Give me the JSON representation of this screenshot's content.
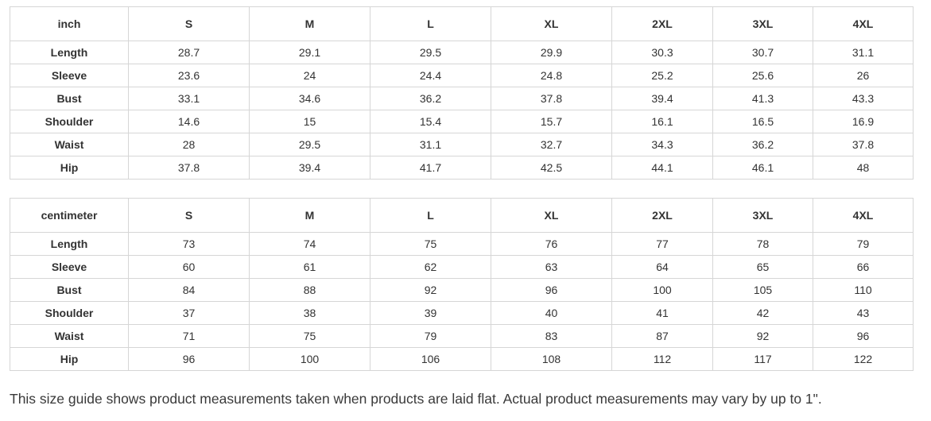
{
  "inch_table": {
    "unit_label": "inch",
    "sizes": [
      "S",
      "M",
      "L",
      "XL",
      "2XL",
      "3XL",
      "4XL"
    ],
    "rows": [
      {
        "label": "Length",
        "values": [
          "28.7",
          "29.1",
          "29.5",
          "29.9",
          "30.3",
          "30.7",
          "31.1"
        ]
      },
      {
        "label": "Sleeve",
        "values": [
          "23.6",
          "24",
          "24.4",
          "24.8",
          "25.2",
          "25.6",
          "26"
        ]
      },
      {
        "label": "Bust",
        "values": [
          "33.1",
          "34.6",
          "36.2",
          "37.8",
          "39.4",
          "41.3",
          "43.3"
        ]
      },
      {
        "label": "Shoulder",
        "values": [
          "14.6",
          "15",
          "15.4",
          "15.7",
          "16.1",
          "16.5",
          "16.9"
        ]
      },
      {
        "label": "Waist",
        "values": [
          "28",
          "29.5",
          "31.1",
          "32.7",
          "34.3",
          "36.2",
          "37.8"
        ]
      },
      {
        "label": "Hip",
        "values": [
          "37.8",
          "39.4",
          "41.7",
          "42.5",
          "44.1",
          "46.1",
          "48"
        ]
      }
    ]
  },
  "cm_table": {
    "unit_label": "centimeter",
    "sizes": [
      "S",
      "M",
      "L",
      "XL",
      "2XL",
      "3XL",
      "4XL"
    ],
    "rows": [
      {
        "label": "Length",
        "values": [
          "73",
          "74",
          "75",
          "76",
          "77",
          "78",
          "79"
        ]
      },
      {
        "label": "Sleeve",
        "values": [
          "60",
          "61",
          "62",
          "63",
          "64",
          "65",
          "66"
        ]
      },
      {
        "label": "Bust",
        "values": [
          "84",
          "88",
          "92",
          "96",
          "100",
          "105",
          "110"
        ]
      },
      {
        "label": "Shoulder",
        "values": [
          "37",
          "38",
          "39",
          "40",
          "41",
          "42",
          "43"
        ]
      },
      {
        "label": "Waist",
        "values": [
          "71",
          "75",
          "79",
          "83",
          "87",
          "92",
          "96"
        ]
      },
      {
        "label": "Hip",
        "values": [
          "96",
          "100",
          "106",
          "108",
          "112",
          "117",
          "122"
        ]
      }
    ]
  },
  "note": "This size guide shows product measurements taken when products are laid flat. Actual product measurements may vary by up to 1\"."
}
